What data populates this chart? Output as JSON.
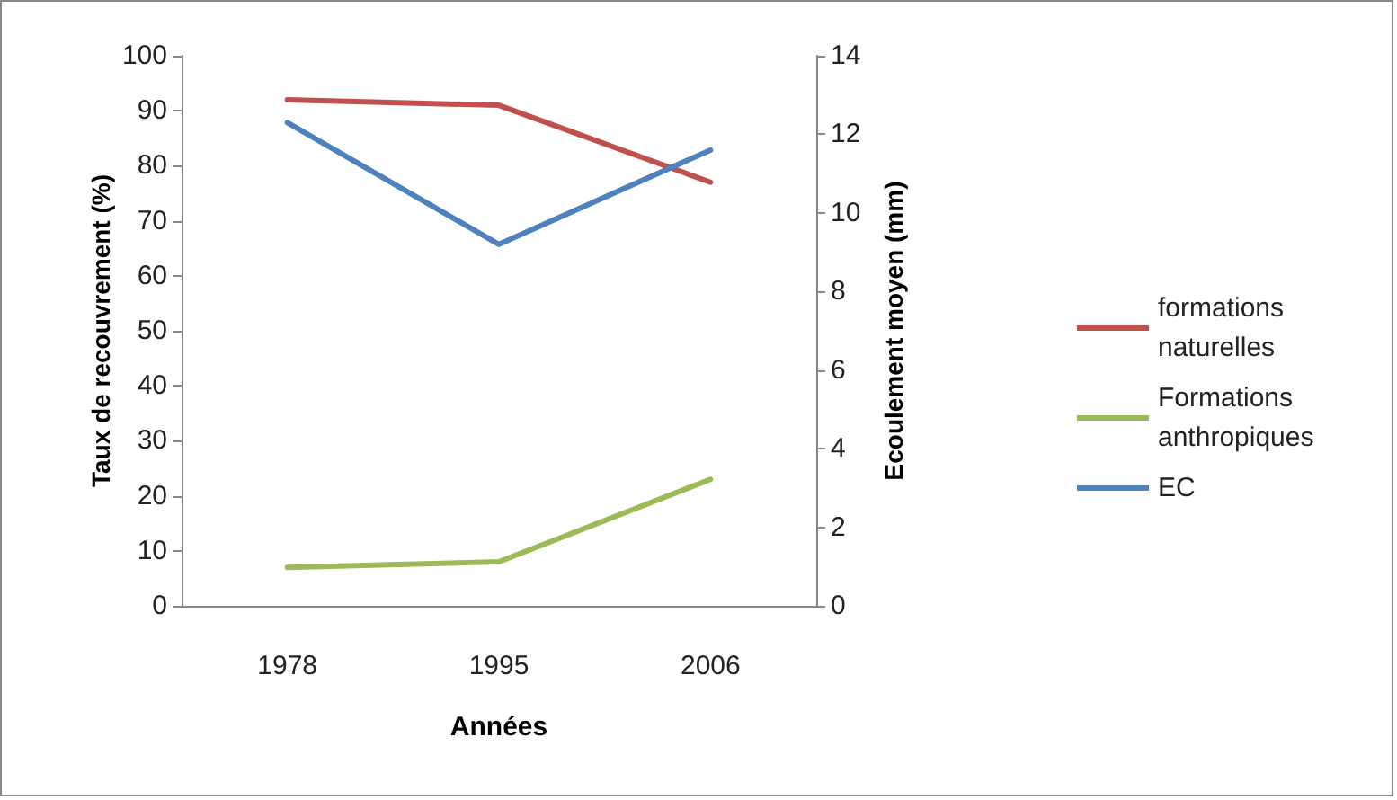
{
  "chart_data": {
    "type": "line",
    "xlabel": "Années",
    "ylabel": "Taux de recouvrement (%)",
    "y2label": "Ecoulement moyen (mm)",
    "categories": [
      "1978",
      "1995",
      "2006"
    ],
    "series": [
      {
        "name": "formations naturelles",
        "color": "#c0504d",
        "values": [
          92,
          91,
          77
        ]
      },
      {
        "name": "Formations anthropiques",
        "color": "#9bbb59",
        "values": [
          7,
          8,
          23
        ]
      },
      {
        "name": "EC",
        "color": "#4f81bd",
        "values": [
          12.3,
          9.2,
          11.6
        ],
        "axis": "y2"
      }
    ],
    "ylim": [
      0,
      100
    ],
    "yticks": [
      0,
      10,
      20,
      30,
      40,
      50,
      60,
      70,
      80,
      90,
      100
    ],
    "y2lim": [
      0,
      14
    ],
    "y2ticks": [
      0,
      2,
      4,
      6,
      8,
      10,
      12,
      14
    ],
    "grid": false,
    "legend": "right",
    "marker": "none",
    "line_style": "solid"
  }
}
